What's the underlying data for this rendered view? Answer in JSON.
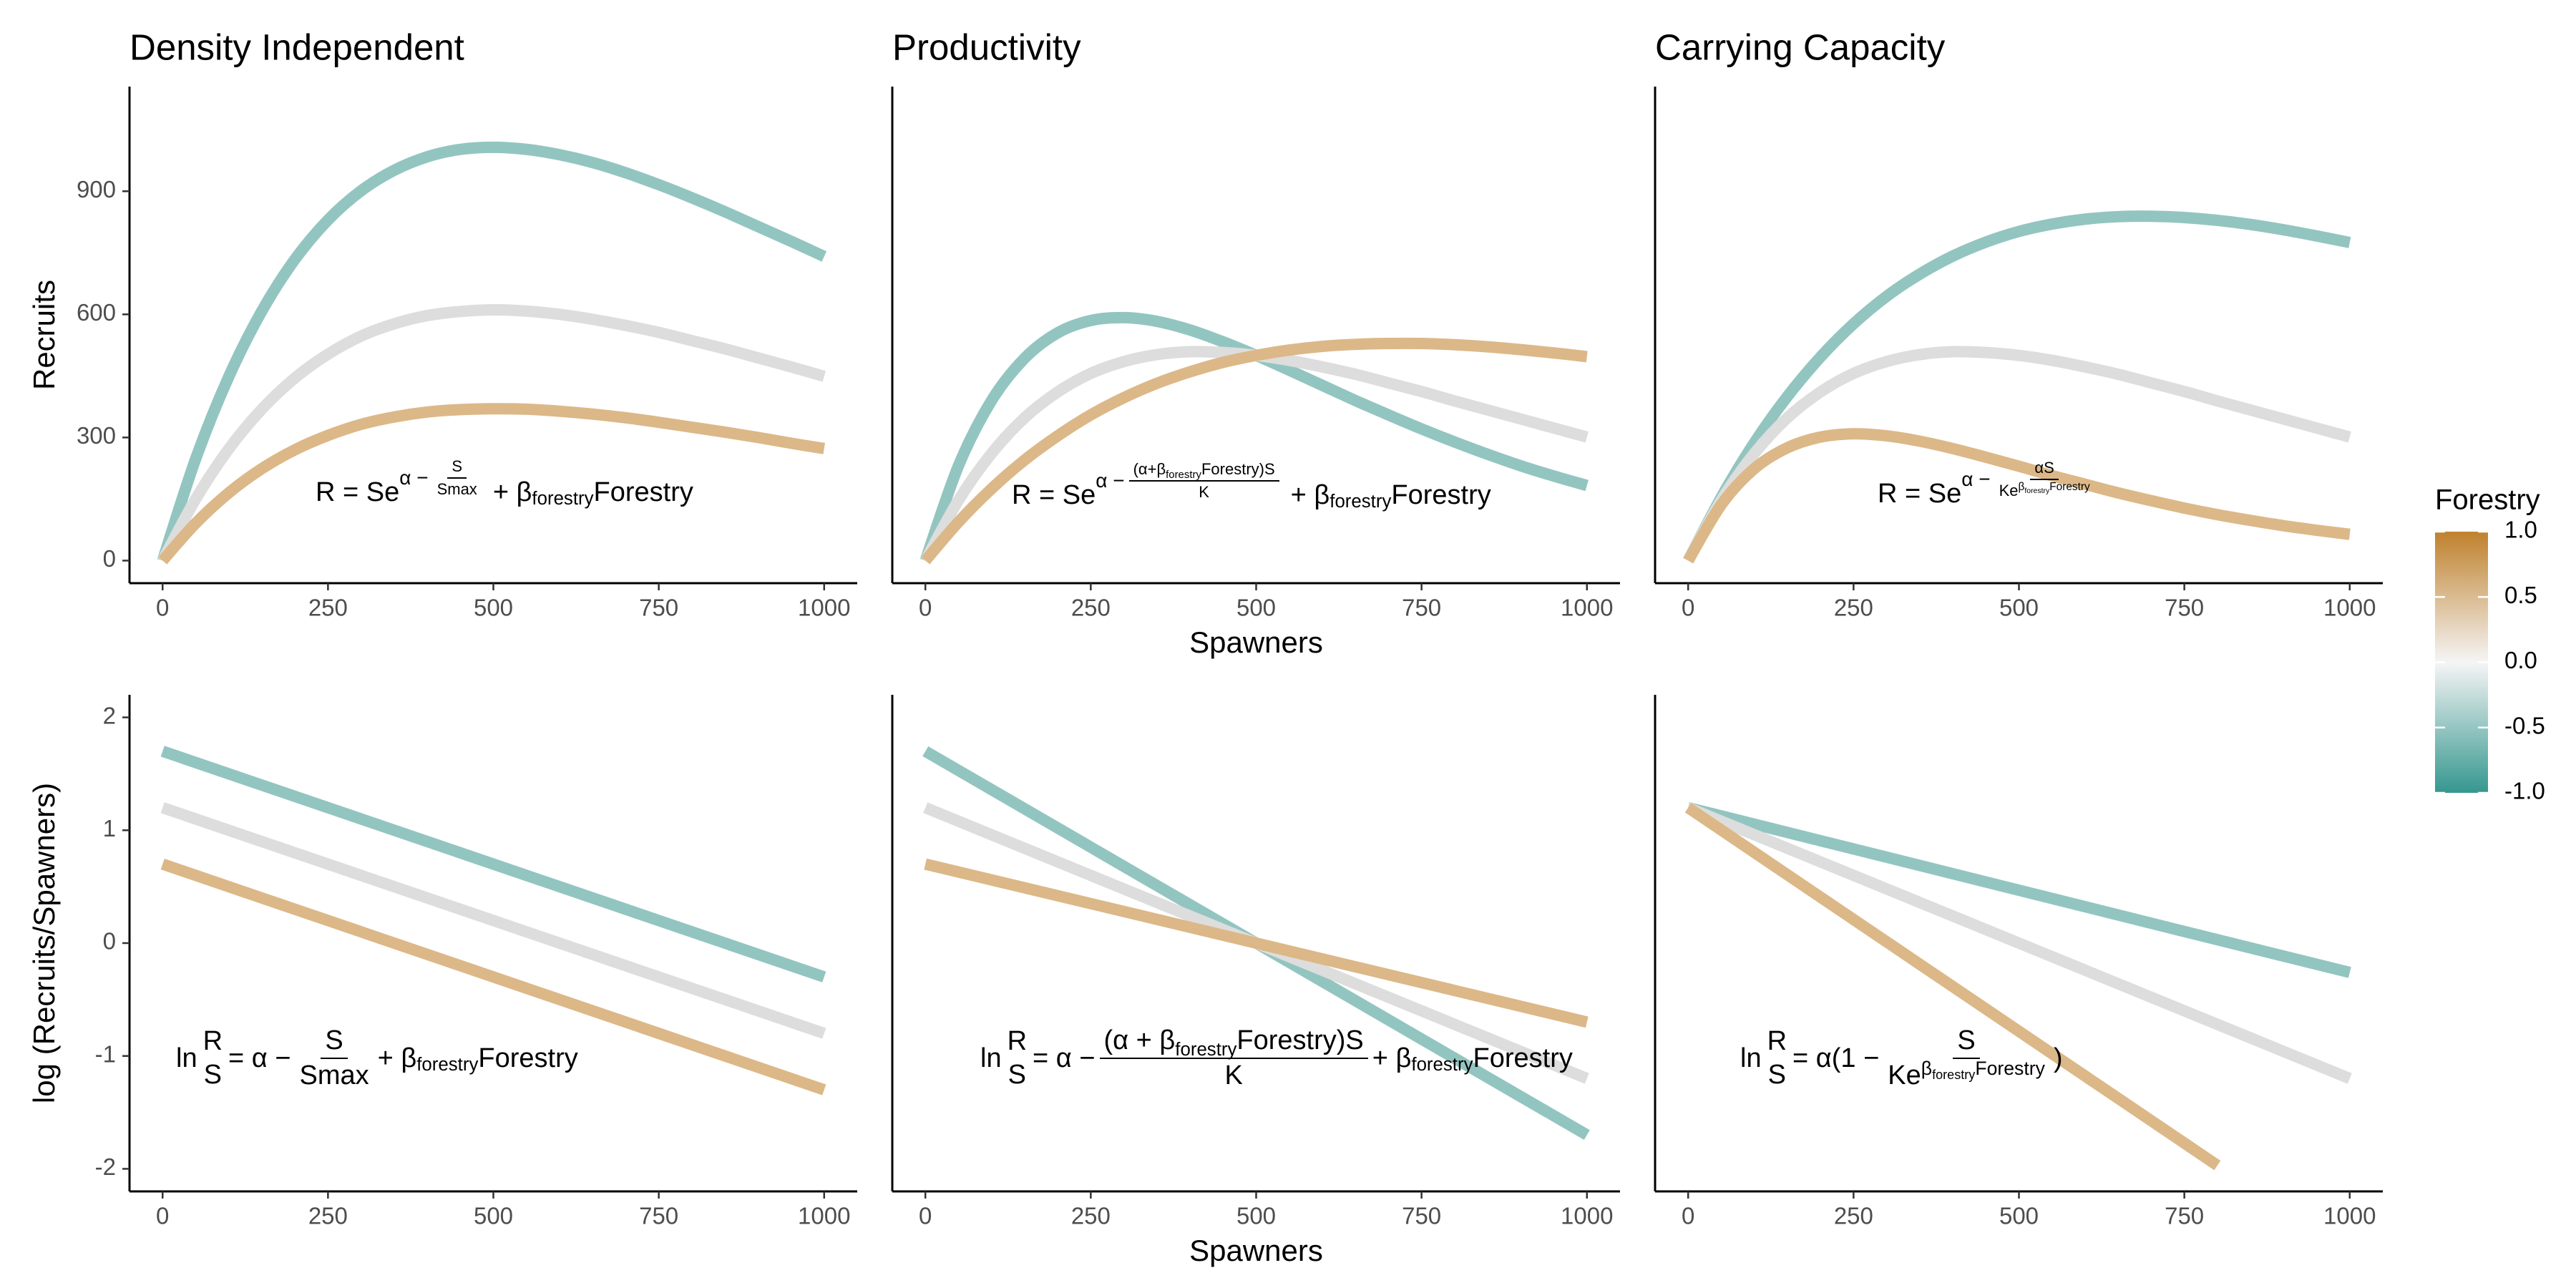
{
  "chart_data": [
    {
      "type": "line",
      "title": "Density Independent",
      "ylabel": "Recruits",
      "x": [
        0,
        50,
        100,
        150,
        200,
        250,
        300,
        350,
        400,
        450,
        500,
        550,
        600,
        650,
        700,
        750,
        800,
        850,
        900,
        950,
        1000
      ],
      "series": [
        {
          "color": "#93c5c0",
          "values": [
            0,
            248,
            448,
            608,
            734,
            830,
            901,
            951,
            984,
            1002,
            1007,
            1002,
            989,
            970,
            945,
            916,
            884,
            850,
            814,
            778,
            741
          ]
        },
        {
          "color": "#dddddd",
          "values": [
            0,
            150,
            272,
            369,
            445,
            503,
            547,
            577,
            597,
            607,
            611,
            608,
            600,
            588,
            573,
            556,
            536,
            516,
            494,
            472,
            449
          ]
        },
        {
          "color": "#dcb888",
          "values": [
            0,
            91,
            165,
            224,
            270,
            305,
            332,
            350,
            362,
            368,
            370,
            369,
            364,
            357,
            348,
            337,
            325,
            313,
            300,
            286,
            273
          ]
        }
      ],
      "xlim": [
        -50,
        1050
      ],
      "ylim": [
        -55,
        1155
      ],
      "xticks": [
        0,
        250,
        500,
        750,
        1000
      ],
      "yticks": [
        0,
        300,
        600,
        900
      ],
      "equation": [
        "R = Se",
        "α −",
        "S",
        "Smax",
        "+ β",
        "forestry",
        "Forestry"
      ]
    },
    {
      "type": "line",
      "title": "Productivity",
      "xlabel": "Spawners",
      "x": [
        0,
        50,
        100,
        150,
        200,
        250,
        300,
        350,
        400,
        450,
        500,
        550,
        600,
        650,
        700,
        750,
        800,
        850,
        900,
        950,
        1000
      ],
      "series": [
        {
          "color": "#93c5c0",
          "values": [
            0,
            231,
            390,
            493,
            555,
            585,
            592,
            583,
            562,
            533,
            500,
            464,
            427,
            390,
            355,
            321,
            289,
            259,
            231,
            206,
            183
          ]
        },
        {
          "color": "#dddddd",
          "values": [
            0,
            147,
            261,
            348,
            411,
            456,
            485,
            502,
            509,
            507,
            500,
            488,
            472,
            454,
            433,
            412,
            389,
            367,
            345,
            323,
            301
          ]
        },
        {
          "color": "#dcb888",
          "values": [
            0,
            94,
            175,
            245,
            304,
            355,
            397,
            432,
            460,
            483,
            500,
            513,
            522,
            527,
            529,
            529,
            526,
            521,
            514,
            506,
            497
          ]
        }
      ],
      "xlim": [
        -50,
        1050
      ],
      "ylim": [
        -55,
        1155
      ],
      "xticks": [
        0,
        250,
        500,
        750,
        1000
      ],
      "equation": [
        "R = Se",
        "α −",
        "(α+β",
        "forestry",
        "Forestry)S",
        "K",
        "+ β",
        "forestry",
        "Forestry"
      ]
    },
    {
      "type": "line",
      "title": "Carrying Capacity",
      "x": [
        0,
        50,
        100,
        150,
        200,
        250,
        300,
        350,
        400,
        450,
        500,
        550,
        600,
        650,
        700,
        750,
        800,
        850,
        900,
        950,
        1000
      ],
      "series": [
        {
          "color": "#93c5c0",
          "values": [
            0,
            154,
            287,
            400,
            496,
            577,
            644,
            698,
            742,
            776,
            802,
            820,
            832,
            838,
            839,
            836,
            829,
            819,
            806,
            791,
            775
          ]
        },
        {
          "color": "#dddddd",
          "values": [
            0,
            147,
            261,
            348,
            411,
            456,
            485,
            502,
            509,
            507,
            500,
            488,
            472,
            454,
            433,
            412,
            389,
            367,
            345,
            323,
            301
          ]
        },
        {
          "color": "#dcb888",
          "values": [
            0,
            136,
            224,
            275,
            301,
            309,
            304,
            291,
            273,
            252,
            230,
            207,
            186,
            165,
            146,
            128,
            112,
            98,
            85,
            74,
            64
          ]
        }
      ],
      "xlim": [
        -50,
        1050
      ],
      "ylim": [
        -55,
        1155
      ],
      "xticks": [
        0,
        250,
        500,
        750,
        1000
      ],
      "equation": [
        "R = Se",
        "α −",
        "αS",
        "Ke",
        "β",
        "forestry",
        "Forestry"
      ]
    },
    {
      "type": "line",
      "ylabel": "log (Recruits/Spawners)",
      "x": [
        0,
        1000
      ],
      "series": [
        {
          "color": "#93c5c0",
          "values": [
            1.7,
            -0.3
          ]
        },
        {
          "color": "#dddddd",
          "values": [
            1.2,
            -0.8
          ]
        },
        {
          "color": "#dcb888",
          "values": [
            0.7,
            -1.3
          ]
        }
      ],
      "xlim": [
        -50,
        1050
      ],
      "ylim": [
        -2.2,
        2.2
      ],
      "xticks": [
        0,
        250,
        500,
        750,
        1000
      ],
      "yticks": [
        -2,
        -1,
        0,
        1,
        2
      ],
      "equation": [
        "ln",
        "R",
        "S",
        "= α −",
        "S",
        "Smax",
        "+ β",
        "forestry",
        "Forestry"
      ]
    },
    {
      "type": "line",
      "xlabel": "Spawners",
      "x": [
        0,
        1000
      ],
      "series": [
        {
          "color": "#93c5c0",
          "values": [
            1.7,
            -1.7
          ]
        },
        {
          "color": "#dddddd",
          "values": [
            1.2,
            -1.2
          ]
        },
        {
          "color": "#dcb888",
          "values": [
            0.7,
            -0.7
          ]
        }
      ],
      "xlim": [
        -50,
        1050
      ],
      "ylim": [
        -2.2,
        2.2
      ],
      "xticks": [
        0,
        250,
        500,
        750,
        1000
      ],
      "equation": [
        "ln",
        "R",
        "S",
        "= α −",
        "(α + β",
        "forestry",
        "Forestry)S",
        "K",
        "+ β",
        "forestry",
        "Forestry"
      ]
    },
    {
      "type": "line",
      "x": [
        0,
        800,
        1000
      ],
      "series": [
        {
          "color": "#93c5c0",
          "values": [
            1.2,
            0.03,
            -0.26
          ]
        },
        {
          "color": "#dddddd",
          "values": [
            1.2,
            -0.72,
            -1.2
          ]
        },
        {
          "color": "#dcb888",
          "values": [
            1.2,
            -1.97,
            null
          ]
        }
      ],
      "xlim": [
        -50,
        1050
      ],
      "ylim": [
        -2.2,
        2.2
      ],
      "xticks": [
        0,
        250,
        500,
        750,
        1000
      ],
      "equation": [
        "ln",
        "R",
        "S",
        "= α(1 −",
        "S",
        "Ke",
        "β",
        "forestry",
        "Forestry",
        ")"
      ]
    }
  ],
  "colorbar": {
    "title": "Forestry",
    "lim": [
      -1,
      1
    ],
    "colors": [
      "#35978f",
      "#f5f5f5",
      "#bf812d"
    ],
    "ticks": [
      {
        "value": 1,
        "label": "1.0"
      },
      {
        "value": 0.5,
        "label": "0.5"
      },
      {
        "value": 0,
        "label": "0.0"
      },
      {
        "value": -0.5,
        "label": "-0.5"
      },
      {
        "value": -1,
        "label": "-1.0"
      }
    ]
  }
}
